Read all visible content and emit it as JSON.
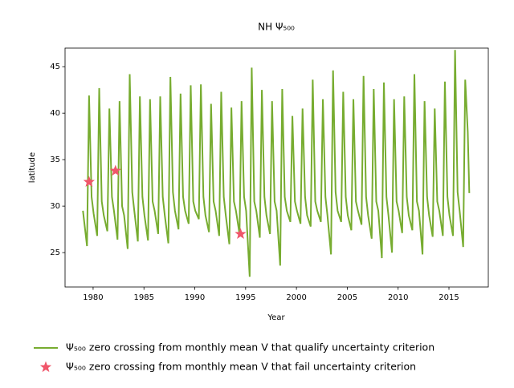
{
  "chart_data": {
    "type": "line",
    "title": "NH Ψ₅₀₀",
    "xlabel": "Year",
    "ylabel": "latitude",
    "xlim": [
      1977.24,
      2018.87
    ],
    "ylim": [
      21.3,
      47.0
    ],
    "xticks": [
      1980,
      1985,
      1990,
      1995,
      2000,
      2005,
      2010,
      2015
    ],
    "yticks": [
      25,
      30,
      35,
      40,
      45
    ],
    "legend": "below",
    "series": [
      {
        "name": "Ψ₅₀₀ zero crossing from monthly mean V that qualify uncertainty criterion",
        "color": "#77ac30",
        "marker": "line",
        "x": [
          1979.0,
          1979.4,
          1979.6,
          1979.85,
          1980.05,
          1980.4,
          1980.6,
          1980.85,
          1981.05,
          1981.4,
          1981.6,
          1981.85,
          1982.05,
          1982.4,
          1982.6,
          1982.85,
          1983.05,
          1983.4,
          1983.6,
          1983.85,
          1984.05,
          1984.4,
          1984.6,
          1984.85,
          1985.05,
          1985.4,
          1985.6,
          1985.85,
          1986.05,
          1986.4,
          1986.6,
          1986.85,
          1987.05,
          1987.4,
          1987.6,
          1987.85,
          1988.05,
          1988.4,
          1988.6,
          1988.85,
          1989.05,
          1989.4,
          1989.6,
          1989.85,
          1990.05,
          1990.4,
          1990.6,
          1990.85,
          1991.05,
          1991.4,
          1991.6,
          1991.85,
          1992.05,
          1992.4,
          1992.6,
          1992.85,
          1993.05,
          1993.4,
          1993.6,
          1993.85,
          1994.05,
          1994.4,
          1994.6,
          1994.85,
          1995.05,
          1995.4,
          1995.6,
          1995.85,
          1996.05,
          1996.4,
          1996.6,
          1996.85,
          1997.05,
          1997.4,
          1997.6,
          1997.85,
          1998.05,
          1998.4,
          1998.6,
          1998.85,
          1999.05,
          1999.4,
          1999.6,
          1999.85,
          2000.05,
          2000.4,
          2000.6,
          2000.85,
          2001.05,
          2001.4,
          2001.6,
          2001.85,
          2002.05,
          2002.4,
          2002.6,
          2002.85,
          2003.05,
          2003.4,
          2003.6,
          2003.85,
          2004.05,
          2004.4,
          2004.6,
          2004.85,
          2005.05,
          2005.4,
          2005.6,
          2005.85,
          2006.05,
          2006.4,
          2006.6,
          2006.85,
          2007.05,
          2007.4,
          2007.6,
          2007.85,
          2008.05,
          2008.4,
          2008.6,
          2008.85,
          2009.05,
          2009.4,
          2009.6,
          2009.85,
          2010.05,
          2010.4,
          2010.6,
          2010.85,
          2011.05,
          2011.4,
          2011.6,
          2011.85,
          2012.05,
          2012.4,
          2012.6,
          2012.85,
          2013.05,
          2013.4,
          2013.6,
          2013.85,
          2014.05,
          2014.4,
          2014.6,
          2014.85,
          2015.05,
          2015.4,
          2015.6,
          2015.85,
          2016.05,
          2016.4,
          2016.6,
          2016.85,
          2017.0
        ],
        "values": [
          29.5,
          25.7,
          41.9,
          31.0,
          29.2,
          26.8,
          42.7,
          30.5,
          29.0,
          27.3,
          40.5,
          31.0,
          29.5,
          26.4,
          41.3,
          30.0,
          29.0,
          25.4,
          44.2,
          31.5,
          29.5,
          26.2,
          41.8,
          31.0,
          29.0,
          26.3,
          41.5,
          30.5,
          29.5,
          27.0,
          41.8,
          31.0,
          29.0,
          26.0,
          43.9,
          31.5,
          29.5,
          27.5,
          42.1,
          31.0,
          29.5,
          28.1,
          43.0,
          30.5,
          29.5,
          28.6,
          43.1,
          31.0,
          29.0,
          27.2,
          41.0,
          30.5,
          29.5,
          26.8,
          42.3,
          31.0,
          29.0,
          25.9,
          40.6,
          30.5,
          29.5,
          27.0,
          41.3,
          31.0,
          29.5,
          22.4,
          44.9,
          30.5,
          29.5,
          26.6,
          42.5,
          31.0,
          29.0,
          27.0,
          41.3,
          30.5,
          29.5,
          23.6,
          42.6,
          31.0,
          29.5,
          28.3,
          39.7,
          30.5,
          29.5,
          28.1,
          40.5,
          31.0,
          29.0,
          27.8,
          43.6,
          30.5,
          29.5,
          28.3,
          41.5,
          31.0,
          29.0,
          24.8,
          44.6,
          31.5,
          29.5,
          28.3,
          42.3,
          31.0,
          29.0,
          27.4,
          41.5,
          30.5,
          29.5,
          28.0,
          44.0,
          31.0,
          29.0,
          26.5,
          42.6,
          30.5,
          29.5,
          24.4,
          43.3,
          31.0,
          29.0,
          25.0,
          41.5,
          30.5,
          29.5,
          27.1,
          41.8,
          31.0,
          29.0,
          27.4,
          44.2,
          30.5,
          29.5,
          24.8,
          41.3,
          31.0,
          29.0,
          26.7,
          40.5,
          30.5,
          29.5,
          26.8,
          43.4,
          31.0,
          29.0,
          26.8,
          46.8,
          31.5,
          29.5,
          25.6,
          43.6,
          38.0,
          31.4
        ]
      },
      {
        "name": "Ψ₅₀₀ zero crossing from monthly mean V that fail uncertainty criterion",
        "color": "#f0566a",
        "marker": "star",
        "x": [
          1979.6,
          1982.2,
          1994.5
        ],
        "values": [
          32.6,
          33.8,
          27.0
        ]
      }
    ]
  }
}
